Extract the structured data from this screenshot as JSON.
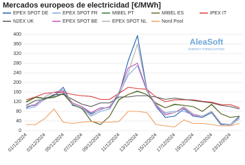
{
  "chart_data": {
    "type": "line",
    "title": "Mercados europeos de electricidad [€/MWh]",
    "watermark": [
      "AleaSoft",
      "ENERGY FORECASTING"
    ],
    "categories": [
      "01/12/2024",
      null,
      "03/12/2024",
      null,
      "05/12/2024",
      null,
      "07/12/2024",
      null,
      "09/12/2024",
      null,
      "11/12/2024",
      null,
      "13/12/2024",
      null,
      "15/12/2024",
      null,
      "17/12/2024",
      null,
      "19/12/2024",
      null,
      "21/12/2024",
      null,
      "23/12/2024",
      null
    ],
    "ylim": [
      0,
      400
    ],
    "yticks": [
      0,
      40,
      80,
      120,
      160,
      200,
      240,
      280,
      320,
      360,
      400
    ],
    "grid": true,
    "series": [
      {
        "name": "EPEX SPOT DE",
        "color": "#1f5fb0",
        "values": [
          95,
          110,
          135,
          145,
          180,
          105,
          95,
          70,
          88,
          100,
          150,
          290,
          395,
          175,
          100,
          55,
          60,
          90,
          60,
          55,
          75,
          25,
          25,
          60
        ]
      },
      {
        "name": "EPEX SPOT FR",
        "color": "#7ea6e0",
        "values": [
          90,
          100,
          130,
          150,
          160,
          110,
          90,
          60,
          80,
          90,
          150,
          230,
          270,
          165,
          100,
          75,
          80,
          80,
          65,
          60,
          80,
          30,
          20,
          50
        ]
      },
      {
        "name": "MIBEL PT",
        "color": "#2e7d32",
        "values": [
          118,
          138,
          133,
          138,
          153,
          108,
          93,
          40,
          25,
          60,
          128,
          150,
          163,
          150,
          113,
          95,
          108,
          105,
          100,
          80,
          108,
          70,
          55,
          60
        ]
      },
      {
        "name": "MIBEL ES",
        "color": "#6b6b2e",
        "values": [
          120,
          140,
          135,
          140,
          155,
          110,
          95,
          40,
          25,
          60,
          130,
          150,
          165,
          150,
          115,
          95,
          110,
          105,
          100,
          80,
          110,
          70,
          55,
          60
        ]
      },
      {
        "name": "IPEX IT",
        "color": "#e03a3a",
        "values": [
          128,
          140,
          155,
          158,
          160,
          150,
          145,
          142,
          130,
          130,
          155,
          180,
          175,
          172,
          140,
          120,
          128,
          128,
          128,
          122,
          118,
          108,
          108,
          95
        ]
      },
      {
        "name": "N2EX UK",
        "color": "#555555",
        "values": [
          105,
          125,
          130,
          150,
          150,
          130,
          110,
          100,
          115,
          115,
          140,
          140,
          145,
          145,
          140,
          130,
          135,
          130,
          125,
          120,
          115,
          105,
          100,
          90
        ]
      },
      {
        "name": "EPEX SPOT BE",
        "color": "#c04fc0",
        "values": [
          100,
          105,
          140,
          160,
          165,
          115,
          100,
          75,
          95,
          95,
          160,
          260,
          280,
          170,
          105,
          65,
          75,
          95,
          65,
          60,
          80,
          30,
          25,
          55
        ]
      },
      {
        "name": "EPEX SPOT NL",
        "color": "#b0b0b0",
        "values": [
          100,
          110,
          140,
          160,
          170,
          110,
          95,
          65,
          90,
          100,
          160,
          240,
          360,
          170,
          110,
          70,
          75,
          100,
          70,
          60,
          80,
          30,
          25,
          55
        ]
      },
      {
        "name": "Nord Pool",
        "color": "#f0a060",
        "values": [
          25,
          25,
          50,
          90,
          35,
          30,
          35,
          38,
          35,
          35,
          38,
          80,
          80,
          75,
          25,
          20,
          15,
          45,
          30,
          30,
          25,
          20,
          20,
          30
        ]
      }
    ]
  }
}
